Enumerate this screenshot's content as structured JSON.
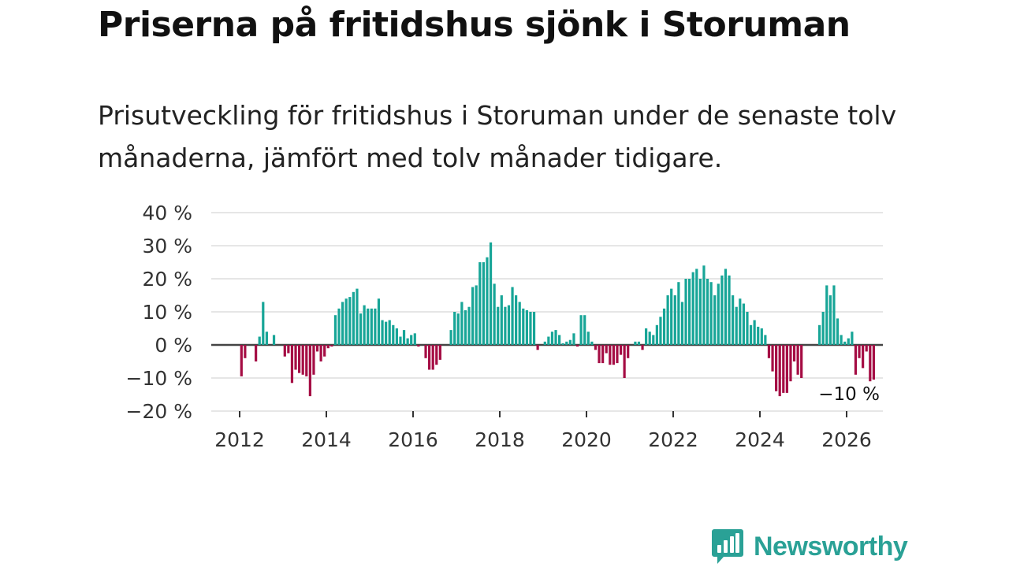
{
  "title": "Priserna på fritidshus sjönk i Storuman",
  "subtitle": "Prisutveckling för fritidshus i Storuman under de senaste tolv månaderna, jämfört med tolv månader tidigare.",
  "brand": {
    "name": "Newsworthy",
    "logo_icon": "newsworthy-bar-chart-icon",
    "color": "#2aa196"
  },
  "colors": {
    "positive": "#17a597",
    "negative": "#a50d44"
  },
  "chart_data": {
    "type": "bar",
    "title": "Priserna på fritidshus sjönk i Storuman",
    "xlabel": "",
    "ylabel": "",
    "ylim": [
      -20,
      40
    ],
    "xlim": [
      2011.6,
      2026.75
    ],
    "yticks": [
      {
        "value": 40,
        "label": "40 %"
      },
      {
        "value": 30,
        "label": "30 %"
      },
      {
        "value": 20,
        "label": "20 %"
      },
      {
        "value": 10,
        "label": "10 %"
      },
      {
        "value": 0,
        "label": "0 %"
      },
      {
        "value": -10,
        "label": "−10 %"
      },
      {
        "value": -20,
        "label": "−20 %"
      }
    ],
    "xticks": [
      {
        "value": 2012,
        "label": "2012"
      },
      {
        "value": 2014,
        "label": "2014"
      },
      {
        "value": 2016,
        "label": "2016"
      },
      {
        "value": 2018,
        "label": "2018"
      },
      {
        "value": 2020,
        "label": "2020"
      },
      {
        "value": 2022,
        "label": "2022"
      },
      {
        "value": 2024,
        "label": "2024"
      },
      {
        "value": 2026,
        "label": "2026"
      }
    ],
    "grid": true,
    "series": [
      {
        "name": "Prisutveckling (%)",
        "start": "2012-01",
        "frequency": "monthly",
        "values": [
          -9.5,
          -4,
          null,
          null,
          -5,
          2.5,
          13,
          4,
          null,
          3,
          null,
          null,
          -3.5,
          -2.5,
          -11.5,
          -7.5,
          -8.5,
          -9,
          -9.5,
          -15.5,
          -9,
          -2,
          -5,
          -3.5,
          -1,
          -0.5,
          9,
          11,
          13,
          14,
          14.5,
          16,
          17,
          9.5,
          12,
          11,
          11,
          11,
          14,
          7.5,
          7,
          7.5,
          6,
          5,
          2.5,
          4.5,
          2,
          3,
          3.5,
          -0.5,
          null,
          -4,
          -7.5,
          -7.5,
          -6,
          -4.5,
          null,
          null,
          4.5,
          10,
          9.5,
          13,
          10.5,
          11.5,
          17.5,
          18,
          25,
          25,
          26.5,
          31,
          18.5,
          11.5,
          15,
          11.5,
          12,
          17.5,
          15,
          13,
          11,
          10.5,
          10,
          10,
          -1.5,
          null,
          1,
          2.5,
          4,
          4.5,
          3,
          0.5,
          1,
          1.5,
          3.5,
          -0.5,
          9,
          9,
          4,
          1,
          -1.5,
          -5.5,
          -5.5,
          -2.5,
          -6,
          -6,
          -5.5,
          -3,
          -10,
          -4,
          null,
          1,
          1,
          -1.5,
          5,
          4,
          3,
          6,
          8.5,
          11,
          15,
          17,
          15,
          19,
          13,
          20,
          20,
          22,
          23,
          20,
          24,
          20,
          19,
          15,
          18.5,
          21,
          23,
          21,
          15,
          11.5,
          14,
          12.5,
          10,
          6,
          7.5,
          5.5,
          5,
          3,
          -4,
          -8,
          -14,
          -15.5,
          -14.5,
          -14.5,
          -11,
          -5,
          -9,
          -10,
          null,
          null,
          null,
          null,
          6,
          10,
          18,
          15,
          18,
          8,
          3,
          1,
          2,
          4,
          -9,
          -4,
          -7,
          -2,
          -11,
          -10.5
        ]
      }
    ],
    "annotations": [
      {
        "text": "−10 %",
        "position": "below-last-bar"
      }
    ]
  }
}
